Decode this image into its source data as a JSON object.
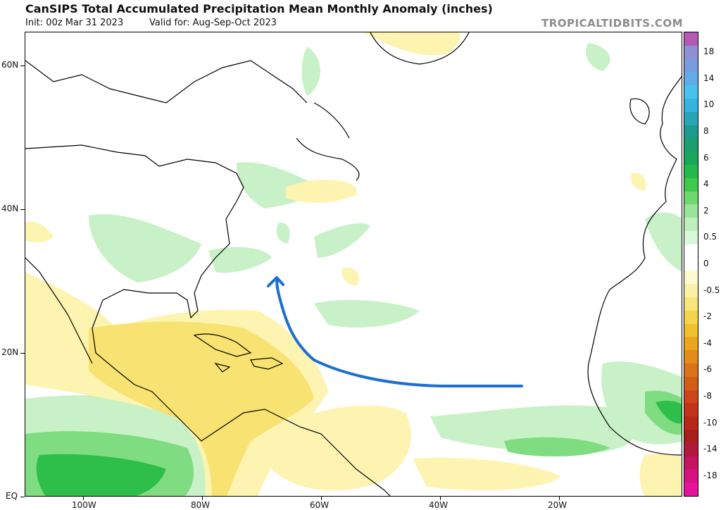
{
  "header": {
    "title": "CanSIPS Total Accumulated Precipitation Mean Monthly Anomaly (inches)",
    "init": "Init: 00z Mar 31 2023",
    "valid": "Valid for: Aug-Sep-Oct 2023",
    "brand": "TROPICALTIDBITS.COM"
  },
  "map": {
    "latitudes": [
      {
        "label": "60N",
        "lat": 60
      },
      {
        "label": "40N",
        "lat": 40
      },
      {
        "label": "20N",
        "lat": 20
      },
      {
        "label": "EQ",
        "lat": 0
      }
    ],
    "longitudes": [
      {
        "label": "100W",
        "lon": -100
      },
      {
        "label": "80W",
        "lon": -80
      },
      {
        "label": "60W",
        "lon": -60
      },
      {
        "label": "40W",
        "lon": -40
      },
      {
        "label": "20W",
        "lon": -20
      }
    ],
    "annotation": {
      "description_color": "#1a6fd0"
    }
  },
  "colorbar": {
    "bins": [
      {
        "color": "#b45cb5"
      },
      {
        "label": "18",
        "color": "#8f8fd6"
      },
      {
        "label": "",
        "color": "#7a9be0"
      },
      {
        "label": "14",
        "color": "#62acec"
      },
      {
        "label": "",
        "color": "#49c2f0"
      },
      {
        "label": "10",
        "color": "#34b4e0"
      },
      {
        "label": "",
        "color": "#28a6b6"
      },
      {
        "label": "8",
        "color": "#1d9a8e"
      },
      {
        "label": "",
        "color": "#1b9e70"
      },
      {
        "label": "6",
        "color": "#19a85a"
      },
      {
        "label": "",
        "color": "#25b94c"
      },
      {
        "label": "4",
        "color": "#3fca4e"
      },
      {
        "label": "",
        "color": "#6bd96b"
      },
      {
        "label": "2",
        "color": "#98e59a"
      },
      {
        "label": "",
        "color": "#bdf0bd"
      },
      {
        "label": "0.5",
        "color": "#d9f7d9"
      },
      {
        "label": "",
        "color": "#ffffff"
      },
      {
        "label": "0",
        "color": "#ffffff"
      },
      {
        "label": "",
        "color": "#fefbd0"
      },
      {
        "label": "-0.5",
        "color": "#fbf2a8"
      },
      {
        "label": "",
        "color": "#f8e67a"
      },
      {
        "label": "-2",
        "color": "#f5d54e"
      },
      {
        "label": "",
        "color": "#f1c02f"
      },
      {
        "label": "-4",
        "color": "#eba51e"
      },
      {
        "label": "",
        "color": "#e48c1a"
      },
      {
        "label": "-6",
        "color": "#dc7319"
      },
      {
        "label": "",
        "color": "#d45c19"
      },
      {
        "label": "-8",
        "color": "#cc4519"
      },
      {
        "label": "",
        "color": "#c23419"
      },
      {
        "label": "-10",
        "color": "#b72818"
      },
      {
        "label": "",
        "color": "#a81e1a"
      },
      {
        "label": "-14",
        "color": "#b0183e"
      },
      {
        "label": "",
        "color": "#c41460"
      },
      {
        "label": "-18",
        "color": "#d61280"
      },
      {
        "color": "#e8109c"
      }
    ]
  }
}
